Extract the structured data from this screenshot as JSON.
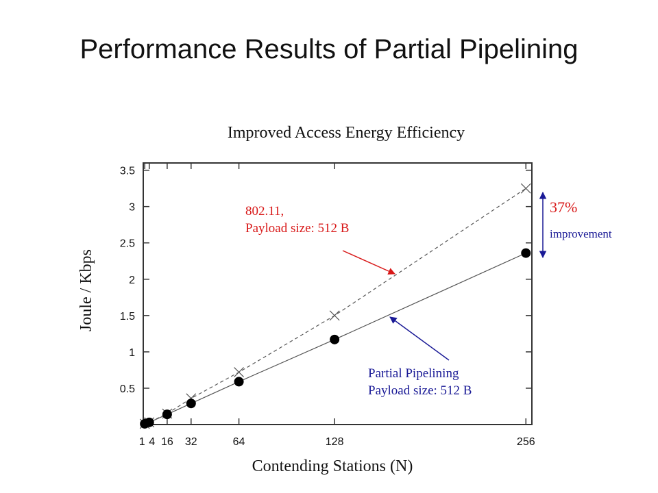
{
  "title": "Performance Results of Partial Pipelining",
  "chart_data": {
    "type": "line",
    "title": "Improved Access Energy Efficiency",
    "xlabel": "Contending Stations (N)",
    "ylabel": "Joule / Kbps",
    "x_ticks": [
      1,
      4,
      16,
      32,
      64,
      128,
      256
    ],
    "x_tick_labels": [
      "1",
      "4",
      "16",
      "32",
      "64",
      "128",
      "256"
    ],
    "y_ticks": [
      0.5,
      1,
      1.5,
      2,
      2.5,
      3,
      3.5
    ],
    "y_tick_labels": [
      "0.5",
      "1",
      "1.5",
      "2",
      "2.5",
      "3",
      "3.5"
    ],
    "xlim": [
      0,
      260
    ],
    "ylim": [
      0,
      3.6
    ],
    "grid": false,
    "series": [
      {
        "name": "802.11, Payload size: 512 B",
        "color": "#555555",
        "line_style": "dashed",
        "marker": "cross",
        "x": [
          1,
          4,
          16,
          32,
          64,
          128,
          256
        ],
        "y": [
          0.01,
          0.03,
          0.15,
          0.36,
          0.72,
          1.5,
          3.25
        ]
      },
      {
        "name": "Partial Pipelining Payload size: 512 B",
        "color": "#555555",
        "line_style": "solid",
        "marker": "filled-circle",
        "x": [
          1,
          4,
          16,
          32,
          64,
          128,
          256
        ],
        "y": [
          0.01,
          0.03,
          0.14,
          0.29,
          0.59,
          1.17,
          2.36
        ]
      }
    ],
    "annotations": {
      "series1_line1": "802.11,",
      "series1_line2": "Payload size: 512 B",
      "series2_line1": "Partial Pipelining",
      "series2_line2": "Payload size: 512 B",
      "improvement_pct": "37%",
      "improvement_word": "improvement",
      "red_color": "#d81818",
      "blue_color": "#1a1a96"
    }
  }
}
